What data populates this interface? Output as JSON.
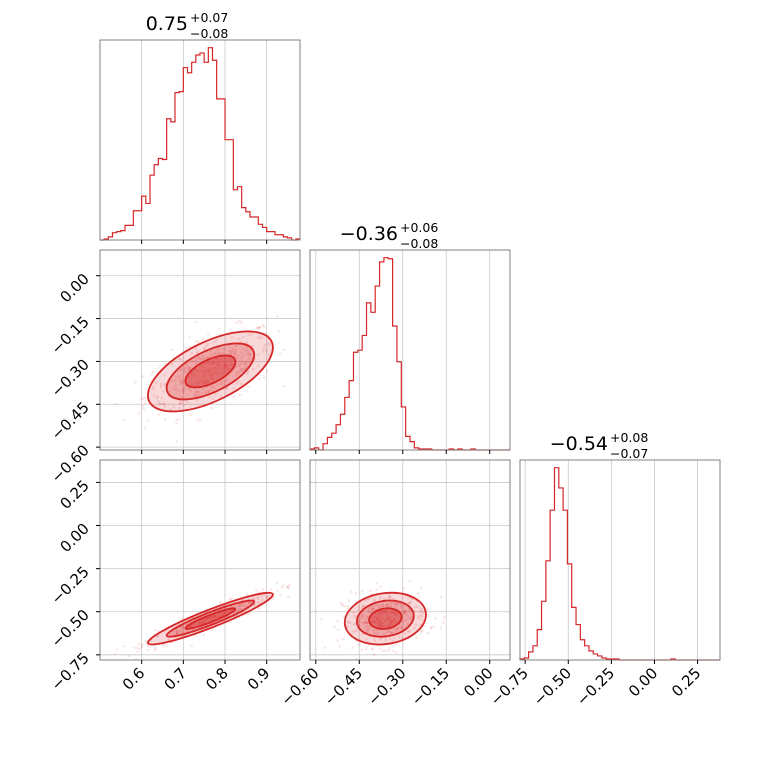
{
  "figure": {
    "accent_color": "#d62728"
  },
  "chart_data": [
    {
      "type": "histogram",
      "panel": "diag-1",
      "title": {
        "median": "0.75",
        "plus": "+0.07",
        "minus": "−0.08"
      },
      "xlim": [
        0.5,
        0.98
      ],
      "xticks": [
        0.6,
        0.7,
        0.8,
        0.9
      ],
      "x_tick_labels": [
        "0.6",
        "0.7",
        "0.8",
        "0.9"
      ],
      "bins": [
        0.5,
        0.51,
        0.52,
        0.53,
        0.54,
        0.55,
        0.56,
        0.57,
        0.58,
        0.59,
        0.6,
        0.61,
        0.62,
        0.63,
        0.64,
        0.65,
        0.66,
        0.67,
        0.68,
        0.69,
        0.7,
        0.71,
        0.72,
        0.73,
        0.74,
        0.75,
        0.76,
        0.77,
        0.78,
        0.79,
        0.8,
        0.81,
        0.82,
        0.83,
        0.84,
        0.85,
        0.86,
        0.87,
        0.88,
        0.89,
        0.9,
        0.91,
        0.92,
        0.93,
        0.94,
        0.95,
        0.96,
        0.97,
        0.98
      ],
      "counts": [
        0,
        1,
        3,
        7,
        8,
        9,
        14,
        14,
        28,
        28,
        42,
        35,
        62,
        72,
        78,
        77,
        116,
        113,
        141,
        142,
        165,
        160,
        170,
        177,
        179,
        170,
        184,
        172,
        135,
        135,
        96,
        96,
        48,
        51,
        31,
        27,
        22,
        22,
        15,
        12,
        8,
        8,
        5,
        5,
        3,
        2,
        0,
        1
      ]
    },
    {
      "type": "scatter-contour",
      "panel": "pair-2-1",
      "xlim": [
        0.5,
        0.98
      ],
      "ylim": [
        -0.61,
        0.09
      ],
      "yticks": [
        0.0,
        -0.15,
        -0.3,
        -0.45,
        -0.6
      ],
      "y_tick_labels": [
        "0.00",
        "−0.15",
        "−0.30",
        "−0.45",
        "−0.60"
      ],
      "center": [
        0.765,
        -0.335
      ],
      "sigma": [
        0.075,
        0.07
      ],
      "correlation": 0.6
    },
    {
      "type": "histogram",
      "panel": "diag-2",
      "title": {
        "median": "−0.36",
        "plus": "+0.06",
        "minus": "−0.08"
      },
      "xlim": [
        -0.62,
        0.07
      ],
      "xticks": [
        -0.6,
        -0.45,
        -0.3,
        -0.15,
        0.0
      ],
      "x_tick_labels": [
        "−0.60",
        "−0.45",
        "−0.30",
        "−0.15",
        "0.00"
      ],
      "bins": [
        -0.62,
        -0.605,
        -0.59,
        -0.575,
        -0.56,
        -0.545,
        -0.53,
        -0.515,
        -0.5,
        -0.485,
        -0.47,
        -0.455,
        -0.44,
        -0.425,
        -0.41,
        -0.395,
        -0.38,
        -0.365,
        -0.35,
        -0.335,
        -0.32,
        -0.305,
        -0.29,
        -0.275,
        -0.26,
        -0.245,
        -0.23,
        -0.215,
        -0.2,
        -0.185,
        -0.17,
        -0.155,
        -0.14,
        -0.125,
        -0.11,
        -0.095,
        -0.08,
        -0.065,
        -0.05,
        -0.035,
        -0.02,
        -0.005,
        0.01,
        0.025,
        0.04,
        0.055,
        0.07
      ],
      "counts": [
        1,
        2,
        0,
        6,
        12,
        16,
        24,
        34,
        50,
        66,
        93,
        95,
        109,
        140,
        131,
        156,
        179,
        183,
        182,
        118,
        84,
        41,
        13,
        8,
        2,
        1,
        1,
        1,
        0,
        0,
        0,
        0,
        1,
        0,
        1,
        0,
        0,
        1,
        0,
        0,
        0,
        0,
        0,
        0,
        0,
        0
      ]
    },
    {
      "type": "scatter-contour",
      "panel": "pair-3-1",
      "xlim": [
        0.5,
        0.98
      ],
      "ylim": [
        -0.78,
        0.38
      ],
      "yticks": [
        0.25,
        0.0,
        -0.25,
        -0.5,
        -0.75
      ],
      "y_tick_labels": [
        "0.25",
        "0.00",
        "−0.25",
        "−0.50",
        "−0.75"
      ],
      "center": [
        0.765,
        -0.54
      ],
      "sigma": [
        0.075,
        0.075
      ],
      "correlation": 0.93
    },
    {
      "type": "scatter-contour",
      "panel": "pair-3-2",
      "xlim": [
        -0.62,
        0.07
      ],
      "ylim": [
        -0.78,
        0.38
      ],
      "center": [
        -0.36,
        -0.54
      ],
      "sigma": [
        0.07,
        0.075
      ],
      "correlation": 0.15
    },
    {
      "type": "histogram",
      "panel": "diag-3",
      "title": {
        "median": "−0.54",
        "plus": "+0.08",
        "minus": "−0.07"
      },
      "xlim": [
        -0.78,
        0.38
      ],
      "xticks": [
        -0.75,
        -0.5,
        -0.25,
        0.0,
        0.25
      ],
      "x_tick_labels": [
        "−0.75",
        "−0.50",
        "−0.25",
        "0.00",
        "0.25"
      ],
      "bins": [
        -0.78,
        -0.755,
        -0.73,
        -0.705,
        -0.68,
        -0.655,
        -0.63,
        -0.605,
        -0.58,
        -0.555,
        -0.53,
        -0.505,
        -0.48,
        -0.455,
        -0.43,
        -0.405,
        -0.38,
        -0.355,
        -0.33,
        -0.305,
        -0.28,
        -0.255,
        -0.23,
        -0.205,
        -0.18,
        -0.155,
        -0.13,
        -0.105,
        -0.08,
        -0.055,
        -0.03,
        -0.005,
        0.02,
        0.045,
        0.07,
        0.095,
        0.12,
        0.145,
        0.17,
        0.195,
        0.22,
        0.245,
        0.27,
        0.295,
        0.32,
        0.345,
        0.38
      ],
      "counts": [
        1,
        2,
        8,
        14,
        30,
        58,
        98,
        148,
        190,
        170,
        148,
        95,
        52,
        35,
        20,
        14,
        9,
        6,
        4,
        2,
        1,
        1,
        1,
        0,
        0,
        0,
        0,
        0,
        0,
        0,
        0,
        0,
        0,
        0,
        0,
        1,
        0,
        0,
        0,
        0,
        0,
        0,
        0,
        0,
        0,
        0
      ]
    }
  ]
}
